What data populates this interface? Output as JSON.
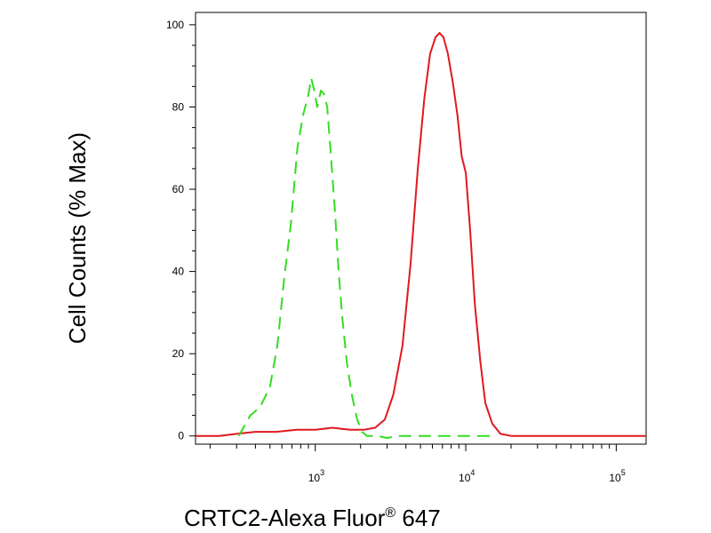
{
  "chart_data": {
    "type": "line",
    "xlabel": "CRTC2-Alexa Fluor® 647",
    "xlabel_parts": {
      "main": "CRTC2-Alexa Fluor",
      "sup": "®",
      "tail": " 647"
    },
    "ylabel": "Cell Counts (% Max)",
    "x_scale": "log",
    "xlim": [
      160,
      158000
    ],
    "ylim": [
      -2,
      103
    ],
    "y_ticks": [
      0,
      20,
      40,
      60,
      80,
      100
    ],
    "x_major_ticks": [
      {
        "value": 1000,
        "base": "10",
        "exp": "3"
      },
      {
        "value": 10000,
        "base": "10",
        "exp": "4"
      },
      {
        "value": 100000,
        "base": "10",
        "exp": "5"
      }
    ],
    "grid": false,
    "series": [
      {
        "color": "#e0191f",
        "dash": "solid",
        "points": [
          [
            160,
            0
          ],
          [
            230,
            0
          ],
          [
            300,
            0.5
          ],
          [
            400,
            1
          ],
          [
            550,
            1
          ],
          [
            750,
            1.5
          ],
          [
            1000,
            1.5
          ],
          [
            1300,
            2
          ],
          [
            1700,
            1.5
          ],
          [
            2100,
            1.5
          ],
          [
            2500,
            2
          ],
          [
            2900,
            4
          ],
          [
            3300,
            10
          ],
          [
            3800,
            22
          ],
          [
            4300,
            42
          ],
          [
            4800,
            65
          ],
          [
            5300,
            82
          ],
          [
            5800,
            93
          ],
          [
            6300,
            97
          ],
          [
            6700,
            98
          ],
          [
            7100,
            97
          ],
          [
            7600,
            93
          ],
          [
            8200,
            86
          ],
          [
            8800,
            78
          ],
          [
            9400,
            68
          ],
          [
            10000,
            64
          ],
          [
            10700,
            50
          ],
          [
            11500,
            32
          ],
          [
            12500,
            18
          ],
          [
            13500,
            8
          ],
          [
            15000,
            3
          ],
          [
            17000,
            0.5
          ],
          [
            20000,
            0
          ],
          [
            40000,
            0
          ],
          [
            100000,
            0
          ],
          [
            158000,
            0
          ]
        ]
      },
      {
        "color": "#33dd22",
        "dash": "dashed",
        "points": [
          [
            310,
            0
          ],
          [
            370,
            5
          ],
          [
            430,
            7
          ],
          [
            500,
            12
          ],
          [
            560,
            22
          ],
          [
            620,
            38
          ],
          [
            690,
            52
          ],
          [
            760,
            70
          ],
          [
            830,
            78
          ],
          [
            900,
            83
          ],
          [
            940,
            87
          ],
          [
            985,
            84
          ],
          [
            1030,
            80
          ],
          [
            1090,
            84
          ],
          [
            1150,
            83
          ],
          [
            1200,
            80
          ],
          [
            1260,
            70
          ],
          [
            1350,
            55
          ],
          [
            1430,
            40
          ],
          [
            1520,
            28
          ],
          [
            1620,
            18
          ],
          [
            1750,
            10
          ],
          [
            1900,
            4
          ],
          [
            2050,
            1
          ],
          [
            2200,
            0
          ],
          [
            2600,
            0
          ],
          [
            3000,
            -0.5
          ],
          [
            3500,
            0
          ],
          [
            5000,
            0
          ],
          [
            8000,
            0
          ],
          [
            10000,
            0
          ],
          [
            15000,
            0
          ]
        ]
      }
    ]
  }
}
